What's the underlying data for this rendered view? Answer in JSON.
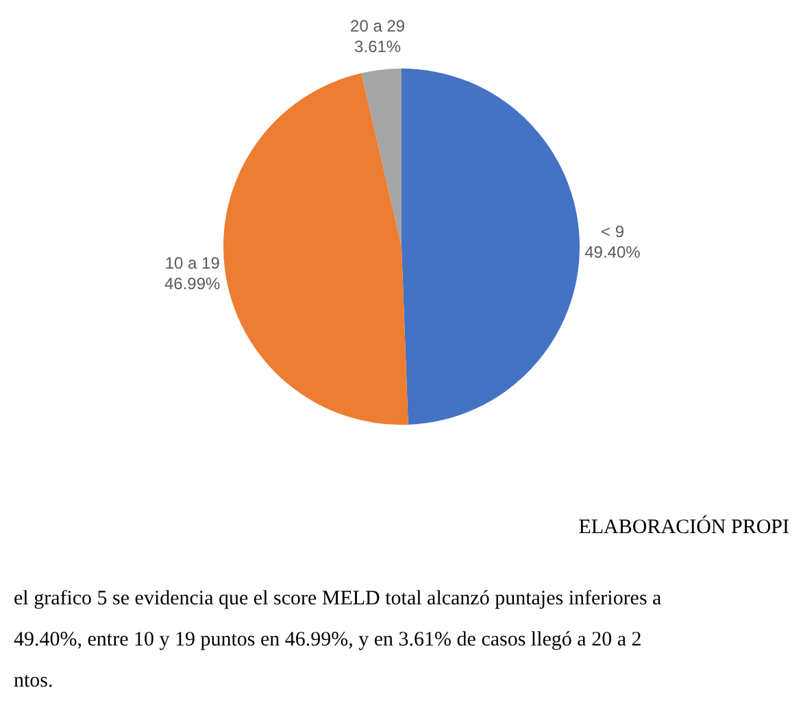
{
  "chart_data": {
    "type": "pie",
    "categories": [
      "< 9",
      "10 a 19",
      "20 a 29"
    ],
    "values": [
      49.4,
      46.99,
      3.61
    ],
    "value_labels": [
      "49.40%",
      "46.99%",
      "3.61%"
    ],
    "colors": [
      "#4472c4",
      "#ed7d31",
      "#a5a5a5"
    ],
    "annotations": [
      "ELABORACIÓN PROPI",
      "el grafico 5 se evidencia que el score MELD total alcanzó puntajes inferiores a",
      "49.40%, entre 10 y 19 puntos en 46.99%, y en 3.61% de casos llegó a 20 a 2",
      "ntos."
    ]
  }
}
